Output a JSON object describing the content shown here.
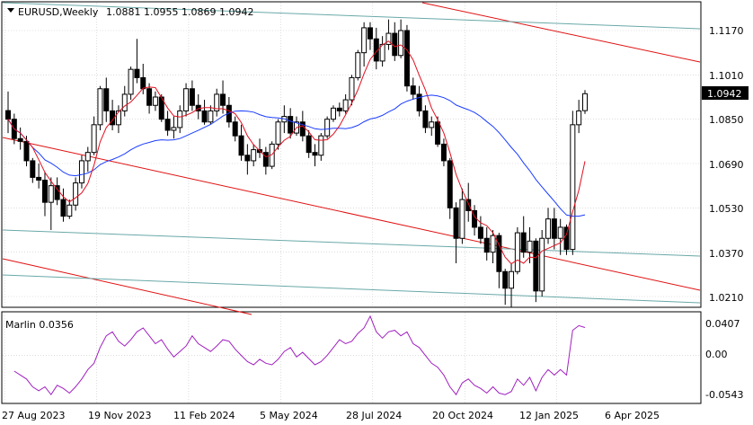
{
  "header": {
    "symbol": "EURUSD,Weekly",
    "ohlc": "1.0881 1.0955 1.0869 1.0942"
  },
  "indicator": {
    "title": "Marlin 0.0356",
    "levels": [
      "0.0407",
      "0.00",
      "-0.0543"
    ],
    "line_color": "#a020c0"
  },
  "price_axis": {
    "labels": [
      "1.1170",
      "1.1010",
      "1.0850",
      "1.0690",
      "1.0530",
      "1.0370",
      "1.0210"
    ],
    "current_price": "1.0942"
  },
  "time_axis": {
    "labels": [
      "27 Aug 2023",
      "19 Nov 2023",
      "11 Feb 2024",
      "5 May 2024",
      "28 Jul 2024",
      "20 Oct 2024",
      "12 Jan 2025",
      "6 Apr 2025"
    ]
  },
  "colors": {
    "trendline_red": "#e01010",
    "channel_teal": "#6aa8a8",
    "ma_blue": "#1a3cff",
    "ma_red": "#e01020",
    "candle": "#000000",
    "grid": "#c8c8c8"
  },
  "chart_data": {
    "type": "candlestick",
    "candles": [
      [
        1.0881,
        1.095,
        1.08,
        1.085
      ],
      [
        1.085,
        1.087,
        1.076,
        1.078
      ],
      [
        1.078,
        1.082,
        1.074,
        1.077
      ],
      [
        1.077,
        1.079,
        1.068,
        1.07
      ],
      [
        1.07,
        1.071,
        1.062,
        1.064
      ],
      [
        1.064,
        1.069,
        1.06,
        1.063
      ],
      [
        1.063,
        1.066,
        1.05,
        1.055
      ],
      [
        1.055,
        1.064,
        1.045,
        1.061
      ],
      [
        1.061,
        1.064,
        1.054,
        1.056
      ],
      [
        1.056,
        1.06,
        1.048,
        1.05
      ],
      [
        1.05,
        1.056,
        1.049,
        1.054
      ],
      [
        1.054,
        1.064,
        1.052,
        1.062
      ],
      [
        1.062,
        1.072,
        1.06,
        1.07
      ],
      [
        1.07,
        1.075,
        1.066,
        1.073
      ],
      [
        1.073,
        1.086,
        1.072,
        1.083
      ],
      [
        1.083,
        1.097,
        1.081,
        1.096
      ],
      [
        1.096,
        1.1,
        1.084,
        1.088
      ],
      [
        1.088,
        1.092,
        1.081,
        1.083
      ],
      [
        1.083,
        1.09,
        1.08,
        1.088
      ],
      [
        1.088,
        1.097,
        1.086,
        1.094
      ],
      [
        1.094,
        1.104,
        1.092,
        1.103
      ],
      [
        1.103,
        1.114,
        1.098,
        1.1
      ],
      [
        1.1,
        1.105,
        1.094,
        1.096
      ],
      [
        1.096,
        1.098,
        1.087,
        1.09
      ],
      [
        1.09,
        1.095,
        1.088,
        1.093
      ],
      [
        1.093,
        1.094,
        1.084,
        1.085
      ],
      [
        1.085,
        1.088,
        1.079,
        1.081
      ],
      [
        1.081,
        1.086,
        1.078,
        1.082
      ],
      [
        1.082,
        1.09,
        1.08,
        1.088
      ],
      [
        1.088,
        1.098,
        1.086,
        1.096
      ],
      [
        1.096,
        1.099,
        1.088,
        1.09
      ],
      [
        1.09,
        1.094,
        1.085,
        1.088
      ],
      [
        1.088,
        1.092,
        1.083,
        1.084
      ],
      [
        1.084,
        1.09,
        1.083,
        1.088
      ],
      [
        1.088,
        1.096,
        1.086,
        1.094
      ],
      [
        1.094,
        1.099,
        1.087,
        1.09
      ],
      [
        1.09,
        1.093,
        1.082,
        1.084
      ],
      [
        1.084,
        1.086,
        1.077,
        1.079
      ],
      [
        1.079,
        1.083,
        1.07,
        1.072
      ],
      [
        1.072,
        1.076,
        1.065,
        1.07
      ],
      [
        1.07,
        1.076,
        1.068,
        1.074
      ],
      [
        1.074,
        1.078,
        1.071,
        1.073
      ],
      [
        1.073,
        1.075,
        1.065,
        1.068
      ],
      [
        1.068,
        1.077,
        1.067,
        1.076
      ],
      [
        1.076,
        1.085,
        1.074,
        1.084
      ],
      [
        1.084,
        1.09,
        1.08,
        1.086
      ],
      [
        1.086,
        1.089,
        1.078,
        1.08
      ],
      [
        1.08,
        1.086,
        1.079,
        1.084
      ],
      [
        1.084,
        1.088,
        1.077,
        1.079
      ],
      [
        1.079,
        1.081,
        1.071,
        1.073
      ],
      [
        1.073,
        1.076,
        1.068,
        1.072
      ],
      [
        1.072,
        1.08,
        1.07,
        1.079
      ],
      [
        1.079,
        1.086,
        1.078,
        1.085
      ],
      [
        1.085,
        1.09,
        1.084,
        1.089
      ],
      [
        1.089,
        1.091,
        1.086,
        1.088
      ],
      [
        1.088,
        1.094,
        1.087,
        1.092
      ],
      [
        1.092,
        1.101,
        1.09,
        1.1
      ],
      [
        1.1,
        1.11,
        1.099,
        1.109
      ],
      [
        1.109,
        1.12,
        1.104,
        1.118
      ],
      [
        1.118,
        1.12,
        1.11,
        1.114
      ],
      [
        1.114,
        1.118,
        1.103,
        1.106
      ],
      [
        1.106,
        1.115,
        1.104,
        1.112
      ],
      [
        1.112,
        1.121,
        1.11,
        1.116
      ],
      [
        1.116,
        1.12,
        1.106,
        1.108
      ],
      [
        1.108,
        1.121,
        1.107,
        1.117
      ],
      [
        1.117,
        1.119,
        1.095,
        1.097
      ],
      [
        1.097,
        1.1,
        1.092,
        1.094
      ],
      [
        1.094,
        1.097,
        1.086,
        1.088
      ],
      [
        1.088,
        1.09,
        1.08,
        1.082
      ],
      [
        1.082,
        1.086,
        1.079,
        1.084
      ],
      [
        1.084,
        1.086,
        1.075,
        1.076
      ],
      [
        1.076,
        1.078,
        1.068,
        1.07
      ],
      [
        1.07,
        1.071,
        1.049,
        1.053
      ],
      [
        1.053,
        1.055,
        1.033,
        1.042
      ],
      [
        1.042,
        1.06,
        1.04,
        1.056
      ],
      [
        1.056,
        1.062,
        1.048,
        1.052
      ],
      [
        1.052,
        1.054,
        1.043,
        1.046
      ],
      [
        1.046,
        1.05,
        1.04,
        1.042
      ],
      [
        1.042,
        1.046,
        1.034,
        1.037
      ],
      [
        1.037,
        1.045,
        1.033,
        1.043
      ],
      [
        1.043,
        1.044,
        1.024,
        1.03
      ],
      [
        1.03,
        1.031,
        1.018,
        1.024
      ],
      [
        1.024,
        1.033,
        1.017,
        1.03
      ],
      [
        1.03,
        1.046,
        1.029,
        1.044
      ],
      [
        1.044,
        1.05,
        1.035,
        1.037
      ],
      [
        1.037,
        1.046,
        1.033,
        1.041
      ],
      [
        1.041,
        1.042,
        1.019,
        1.023
      ],
      [
        1.023,
        1.045,
        1.021,
        1.042
      ],
      [
        1.042,
        1.053,
        1.04,
        1.049
      ],
      [
        1.049,
        1.053,
        1.038,
        1.042
      ],
      [
        1.042,
        1.049,
        1.036,
        1.046
      ],
      [
        1.046,
        1.047,
        1.036,
        1.038
      ],
      [
        1.038,
        1.088,
        1.036,
        1.083
      ],
      [
        1.083,
        1.092,
        1.08,
        1.088
      ],
      [
        1.0881,
        1.0955,
        1.0869,
        1.0942
      ]
    ],
    "marlin": [
      -0.02,
      -0.025,
      -0.03,
      -0.04,
      -0.045,
      -0.04,
      -0.05,
      -0.038,
      -0.042,
      -0.048,
      -0.04,
      -0.03,
      -0.018,
      -0.01,
      0.01,
      0.025,
      0.03,
      0.018,
      0.012,
      0.02,
      0.03,
      0.035,
      0.025,
      0.015,
      0.02,
      0.008,
      -0.002,
      0.005,
      0.012,
      0.025,
      0.015,
      0.01,
      0.005,
      0.012,
      0.02,
      0.018,
      0.008,
      0.0,
      -0.008,
      -0.012,
      -0.005,
      -0.01,
      -0.012,
      -0.005,
      0.005,
      0.01,
      -0.002,
      0.004,
      -0.004,
      -0.012,
      -0.008,
      0.0,
      0.01,
      0.02,
      0.015,
      0.018,
      0.028,
      0.035,
      0.05,
      0.03,
      0.022,
      0.03,
      0.032,
      0.025,
      0.03,
      0.015,
      0.01,
      0.0,
      -0.01,
      -0.015,
      -0.025,
      -0.04,
      -0.05,
      -0.035,
      -0.03,
      -0.038,
      -0.042,
      -0.048,
      -0.04,
      -0.048,
      -0.05,
      -0.046,
      -0.03,
      -0.038,
      -0.028,
      -0.045,
      -0.028,
      -0.018,
      -0.025,
      -0.018,
      -0.025,
      0.032,
      0.038,
      0.0356
    ]
  }
}
